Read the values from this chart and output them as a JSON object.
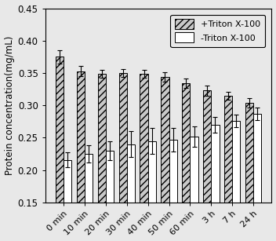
{
  "categories": [
    "0 min",
    "10 min",
    "20 min",
    "30 min",
    "40 min",
    "50 min",
    "60 min",
    "3 h",
    "7 h",
    "24 h"
  ],
  "plus_triton_values": [
    0.375,
    0.353,
    0.349,
    0.35,
    0.349,
    0.344,
    0.334,
    0.323,
    0.315,
    0.304
  ],
  "plus_triton_errors": [
    0.01,
    0.008,
    0.006,
    0.006,
    0.006,
    0.007,
    0.007,
    0.008,
    0.006,
    0.007
  ],
  "minus_triton_values": [
    0.216,
    0.225,
    0.23,
    0.24,
    0.245,
    0.247,
    0.252,
    0.27,
    0.276,
    0.287
  ],
  "minus_triton_errors": [
    0.012,
    0.013,
    0.014,
    0.02,
    0.02,
    0.018,
    0.016,
    0.012,
    0.01,
    0.01
  ],
  "ylabel": "Protein concentration(mg/mL)",
  "ylim": [
    0.15,
    0.45
  ],
  "yticks": [
    0.15,
    0.2,
    0.25,
    0.3,
    0.35,
    0.4,
    0.45
  ],
  "bar_width": 0.38,
  "hatch_plus": "////",
  "hatch_minus": "",
  "color_plus": "#c8c8c8",
  "color_minus": "#ffffff",
  "edge_color": "#000000",
  "legend_plus": "+Triton X-100",
  "legend_minus": "-Triton X-100",
  "plot_bg": "#e8e8e8",
  "fig_bg": "#e8e8e8",
  "figsize": [
    3.52,
    3.07
  ],
  "dpi": 100
}
